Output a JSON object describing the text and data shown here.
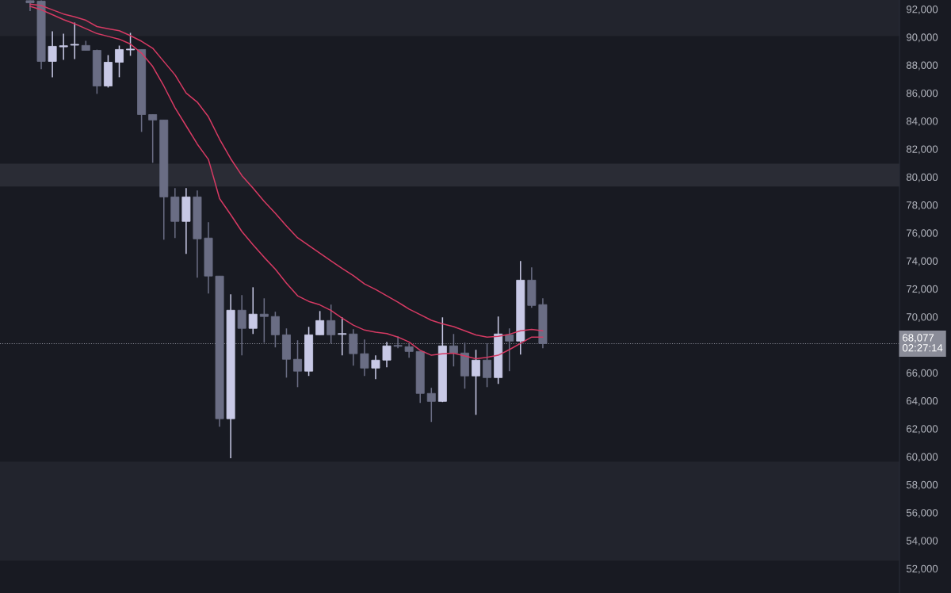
{
  "chart_data": {
    "type": "candlestick",
    "categories": [
      null,
      null,
      null,
      null,
      null,
      null,
      null,
      null,
      null,
      null,
      null,
      null,
      null,
      null,
      null,
      null,
      null,
      null,
      null,
      null,
      null,
      null,
      null,
      null,
      null,
      null,
      null,
      null,
      null,
      null,
      null,
      null,
      null,
      null,
      null,
      null,
      null,
      null,
      null,
      null,
      null,
      null,
      null,
      null,
      null,
      null,
      null
    ],
    "ohlc": [
      [
        92600,
        92620,
        91850,
        92450
      ],
      [
        92570,
        92620,
        87700,
        88260
      ],
      [
        88260,
        90410,
        87130,
        89340
      ],
      [
        89300,
        90240,
        88370,
        89380
      ],
      [
        89420,
        91040,
        88430,
        89480
      ],
      [
        89400,
        89730,
        89050,
        89050
      ],
      [
        89050,
        89100,
        85940,
        86500
      ],
      [
        86500,
        88710,
        86390,
        88200
      ],
      [
        88200,
        89390,
        87130,
        89110
      ],
      [
        89080,
        90300,
        88660,
        89140
      ],
      [
        89110,
        89110,
        83220,
        84460
      ],
      [
        84460,
        84460,
        81010,
        84070
      ],
      [
        84070,
        84070,
        75510,
        78570
      ],
      [
        78570,
        79200,
        75630,
        76820
      ],
      [
        76820,
        79200,
        74490,
        78570
      ],
      [
        78570,
        79030,
        72790,
        75570
      ],
      [
        75630,
        76760,
        71660,
        72910
      ],
      [
        72910,
        72910,
        62140,
        62710
      ],
      [
        62710,
        71600,
        59880,
        70470
      ],
      [
        70470,
        71550,
        67240,
        69170
      ],
      [
        69170,
        72110,
        68770,
        70190
      ],
      [
        70190,
        71320,
        68150,
        70020
      ],
      [
        70020,
        70360,
        67810,
        68710
      ],
      [
        68710,
        69170,
        65650,
        66960
      ],
      [
        66960,
        68320,
        64970,
        66110
      ],
      [
        66110,
        69280,
        65770,
        68710
      ],
      [
        68710,
        70410,
        68710,
        69730
      ],
      [
        69730,
        70870,
        68090,
        68710
      ],
      [
        68740,
        69960,
        67240,
        68800
      ],
      [
        68770,
        69110,
        66500,
        67360
      ],
      [
        67360,
        68370,
        65770,
        66330
      ],
      [
        66330,
        67240,
        65540,
        66900
      ],
      [
        66900,
        68200,
        66390,
        67920
      ],
      [
        67950,
        68600,
        67750,
        67890
      ],
      [
        67860,
        68090,
        67070,
        67520
      ],
      [
        67520,
        67520,
        63840,
        64520
      ],
      [
        64520,
        64920,
        62480,
        63950
      ],
      [
        63950,
        69960,
        63900,
        67920
      ],
      [
        67920,
        68770,
        66450,
        67410
      ],
      [
        67410,
        68150,
        64860,
        65770
      ],
      [
        65770,
        67640,
        62990,
        66900
      ],
      [
        66900,
        68090,
        64970,
        65650
      ],
      [
        65650,
        70020,
        65200,
        68770
      ],
      [
        68710,
        69170,
        66110,
        68260
      ],
      [
        68260,
        73980,
        67300,
        72620
      ],
      [
        72620,
        73530,
        70640,
        70810
      ],
      [
        70870,
        71320,
        67750,
        68077
      ]
    ],
    "colors": [
      "#6a6d84",
      "#6a6d84",
      "#c8c9e6",
      "#c8c9e6",
      "#c8c9e6",
      "#6a6d84",
      "#6a6d84",
      "#c8c9e6",
      "#c8c9e6",
      "#c8c9e6",
      "#6a6d84",
      "#6a6d84",
      "#6a6d84",
      "#6a6d84",
      "#c8c9e6",
      "#6a6d84",
      "#6a6d84",
      "#6a6d84",
      "#c8c9e6",
      "#6a6d84",
      "#c8c9e6",
      "#6a6d84",
      "#6a6d84",
      "#6a6d84",
      "#6a6d84",
      "#c8c9e6",
      "#c8c9e6",
      "#6a6d84",
      "#c8c9e6",
      "#6a6d84",
      "#6a6d84",
      "#c8c9e6",
      "#c8c9e6",
      "#6a6d84",
      "#6a6d84",
      "#6a6d84",
      "#6a6d84",
      "#c8c9e6",
      "#6a6d84",
      "#6a6d84",
      "#c8c9e6",
      "#6a6d84",
      "#c8c9e6",
      "#6a6d84",
      "#c8c9e6",
      "#6a6d84",
      "#6a6d84"
    ],
    "series": [
      {
        "type": "line",
        "color": "#d63a63",
        "values": [
          92350,
          92250,
          91950,
          91650,
          91450,
          91200,
          90750,
          90600,
          90450,
          90100,
          89700,
          89200,
          88250,
          87300,
          86000,
          85350,
          84300,
          82700,
          81300,
          80100,
          79200,
          78250,
          77400,
          76500,
          75650,
          75100,
          74550,
          74000,
          73450,
          72950,
          72350,
          71950,
          71500,
          71050,
          70550,
          70150,
          69750,
          69500,
          69300,
          69000,
          68700,
          68550,
          68600,
          68750,
          69000,
          69100,
          69000
        ]
      },
      {
        "type": "line",
        "color": "#d63a63",
        "values": [
          92200,
          91950,
          91600,
          91250,
          90950,
          90600,
          90250,
          90050,
          89850,
          89500,
          88850,
          87900,
          86500,
          84950,
          83650,
          82350,
          81250,
          78450,
          77300,
          76100,
          75150,
          74250,
          73400,
          72400,
          71500,
          71100,
          70850,
          70450,
          69900,
          69400,
          69050,
          68900,
          68800,
          68550,
          68200,
          67600,
          67250,
          67350,
          67400,
          67200,
          67000,
          67100,
          67250,
          67650,
          68100,
          68550,
          68550
        ]
      }
    ],
    "ylim": [
      50250,
      92650
    ],
    "yticks": [
      {
        "value": 52000,
        "label": "52,000"
      },
      {
        "value": 54000,
        "label": "54,000"
      },
      {
        "value": 56000,
        "label": "56,000"
      },
      {
        "value": 58000,
        "label": "58,000"
      },
      {
        "value": 60000,
        "label": "60,000"
      },
      {
        "value": 62000,
        "label": "62,000"
      },
      {
        "value": 64000,
        "label": "64,000"
      },
      {
        "value": 66000,
        "label": "66,000"
      },
      {
        "value": 70000,
        "label": "70,000"
      },
      {
        "value": 72000,
        "label": "72,000"
      },
      {
        "value": 74000,
        "label": "74,000"
      },
      {
        "value": 76000,
        "label": "76,000"
      },
      {
        "value": 78000,
        "label": "78,000"
      },
      {
        "value": 80000,
        "label": "80,000"
      },
      {
        "value": 82000,
        "label": "82,000"
      },
      {
        "value": 84000,
        "label": "84,000"
      },
      {
        "value": 86000,
        "label": "86,000"
      },
      {
        "value": 88000,
        "label": "88,000"
      },
      {
        "value": 90000,
        "label": "90,000"
      },
      {
        "value": 92000,
        "label": "92,000"
      }
    ],
    "tick_labels": "y",
    "bands": [
      {
        "axis": "y",
        "from": 90070,
        "to": 92650,
        "color": "#22242d"
      },
      {
        "axis": "y",
        "from": 79310,
        "to": 80950,
        "color": "#2a2c35"
      },
      {
        "axis": "y",
        "from": 52560,
        "to": 59650,
        "color": "#22242d"
      }
    ],
    "ref_lines": [
      {
        "axis": "y",
        "value": 68077,
        "label": "68,077",
        "color": "#8a8c98",
        "line_style": "dotted"
      }
    ],
    "annotations": [
      "02:27:14"
    ]
  }
}
